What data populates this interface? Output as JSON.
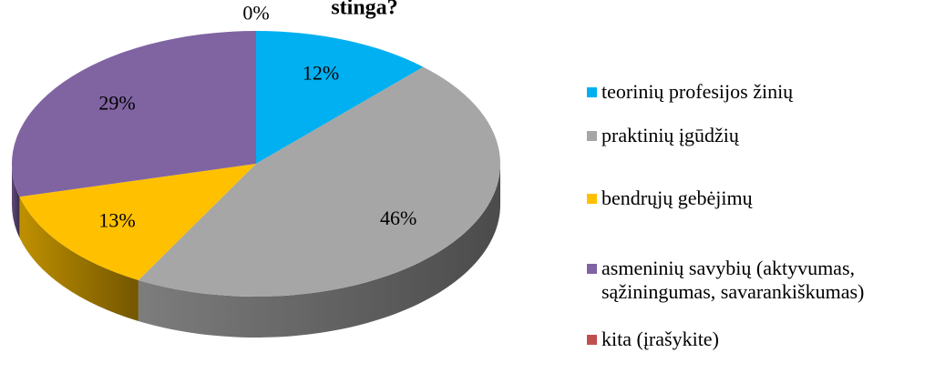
{
  "chart_data": {
    "type": "pie",
    "title": "stinga?",
    "categories": [
      "teorinių profesijos žinių",
      "praktinių įgūdžių",
      "bendrųjų gebėjimų",
      "asmeninių savybių (aktyvumas, sąžiningumas, savarankiškumas)",
      "kita (įrašykite)"
    ],
    "values": [
      12,
      46,
      13,
      29,
      0
    ],
    "value_labels": [
      "12%",
      "46%",
      "13%",
      "29%",
      "0%"
    ],
    "colors": [
      "#00b0f0",
      "#a6a6a6",
      "#ffc000",
      "#8064a2",
      "#c0504d"
    ],
    "legend": "right"
  }
}
